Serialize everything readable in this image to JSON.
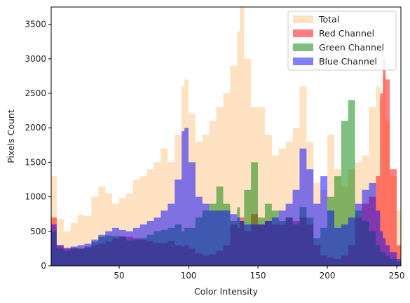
{
  "chart_data": {
    "type": "area",
    "xlabel": "Color Intensity",
    "ylabel": "Pixels Count",
    "xlim": [
      1,
      253
    ],
    "ylim": [
      0,
      3750
    ],
    "xticks": [
      50,
      100,
      150,
      200,
      250
    ],
    "yticks": [
      0,
      500,
      1000,
      1500,
      2000,
      2500,
      3000,
      3500
    ],
    "legend_position": "top-right",
    "x": [
      1,
      5,
      10,
      15,
      20,
      25,
      30,
      35,
      40,
      45,
      50,
      55,
      60,
      65,
      70,
      75,
      80,
      85,
      90,
      95,
      97,
      100,
      105,
      110,
      115,
      120,
      125,
      130,
      135,
      137,
      140,
      145,
      150,
      155,
      160,
      165,
      170,
      175,
      180,
      185,
      190,
      195,
      200,
      205,
      210,
      215,
      220,
      225,
      230,
      235,
      238,
      240,
      242,
      245,
      250,
      253
    ],
    "series": [
      {
        "name": "Total",
        "color": "#ffcf99",
        "values": [
          1300,
          680,
          500,
          620,
          740,
          720,
          1000,
          1150,
          1050,
          900,
          980,
          1050,
          1250,
          1300,
          1400,
          1500,
          1700,
          1500,
          1900,
          2600,
          2700,
          2200,
          1800,
          1900,
          2100,
          2300,
          2500,
          2900,
          3400,
          3750,
          3000,
          2300,
          2300,
          1900,
          1600,
          1700,
          1800,
          2000,
          2600,
          1800,
          1200,
          1100,
          1900,
          1400,
          1150,
          1400,
          1500,
          1600,
          2300,
          2600,
          2400,
          2750,
          2100,
          1300,
          800,
          600
        ]
      },
      {
        "name": "Red Channel",
        "color": "#ff0000",
        "values": [
          700,
          300,
          250,
          250,
          250,
          260,
          300,
          320,
          350,
          400,
          430,
          420,
          400,
          380,
          360,
          330,
          330,
          360,
          300,
          280,
          300,
          250,
          180,
          150,
          170,
          220,
          300,
          600,
          550,
          700,
          500,
          750,
          600,
          650,
          600,
          600,
          700,
          650,
          700,
          600,
          300,
          150,
          120,
          100,
          150,
          300,
          700,
          900,
          1000,
          1300,
          2500,
          3000,
          2700,
          1400,
          300,
          100
        ]
      },
      {
        "name": "Green Channel",
        "color": "#008000",
        "values": [
          500,
          250,
          220,
          260,
          250,
          280,
          350,
          420,
          440,
          430,
          420,
          370,
          380,
          400,
          450,
          500,
          520,
          550,
          600,
          500,
          550,
          550,
          700,
          800,
          900,
          1150,
          900,
          650,
          850,
          650,
          1100,
          1500,
          700,
          900,
          800,
          650,
          700,
          600,
          850,
          700,
          400,
          550,
          1000,
          1300,
          2100,
          2400,
          800,
          650,
          500,
          300,
          200,
          200,
          150,
          100,
          60,
          30
        ]
      },
      {
        "name": "Blue Channel",
        "color": "#0000ff",
        "values": [
          600,
          300,
          260,
          280,
          300,
          320,
          380,
          450,
          500,
          550,
          520,
          500,
          550,
          600,
          650,
          700,
          800,
          900,
          1250,
          1950,
          2000,
          1500,
          1000,
          900,
          800,
          800,
          800,
          750,
          700,
          650,
          600,
          600,
          600,
          650,
          700,
          800,
          900,
          1100,
          1700,
          1400,
          900,
          1300,
          800,
          550,
          600,
          700,
          900,
          1100,
          1200,
          800,
          500,
          400,
          300,
          200,
          100,
          60
        ]
      }
    ]
  }
}
